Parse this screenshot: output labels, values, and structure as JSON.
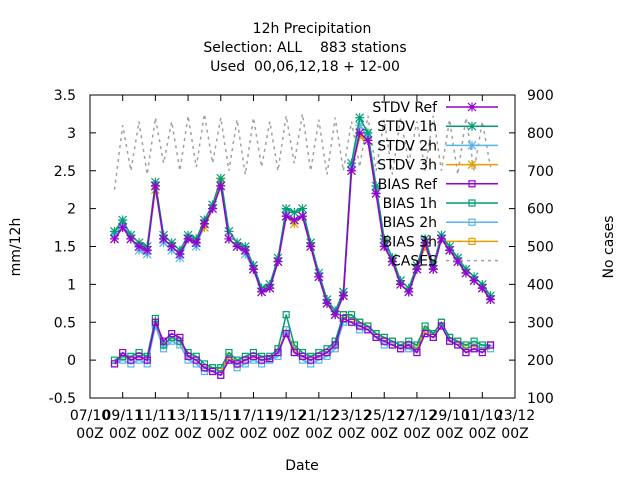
{
  "chart_data": {
    "type": "line",
    "title": "12h Precipitation",
    "subtitle": [
      "Selection: ALL    883 stations",
      "Used  00,06,12,18 + 12-00"
    ],
    "x_label": "Date",
    "y_label": "mm/12h",
    "y2_label": "No cases",
    "legend": "top right",
    "xlim": [
      0,
      26
    ],
    "xticks": [
      {
        "value": 0,
        "label": "07/10\n00Z"
      },
      {
        "value": 2,
        "label": "09/11\n00Z"
      },
      {
        "value": 4,
        "label": "11/11\n00Z"
      },
      {
        "value": 6,
        "label": "13/11\n00Z"
      },
      {
        "value": 8,
        "label": "15/11\n00Z"
      },
      {
        "value": 10,
        "label": "17/11\n00Z"
      },
      {
        "value": 12,
        "label": "19/12\n00Z"
      },
      {
        "value": 14,
        "label": "21/12\n00Z"
      },
      {
        "value": 16,
        "label": "23/12\n00Z"
      },
      {
        "value": 18,
        "label": "25/12\n00Z"
      },
      {
        "value": 20,
        "label": "27/12\n00Z"
      },
      {
        "value": 22,
        "label": "29/10\n00Z"
      },
      {
        "value": 24,
        "label": "11/10\n00Z"
      },
      {
        "value": 26,
        "label": "23/12\n00Z"
      }
    ],
    "ylim": [
      -0.5,
      3.5
    ],
    "yticks": [
      {
        "value": -0.5,
        "label": "-0.5"
      },
      0,
      0.5,
      1,
      1.5,
      2,
      2.5,
      3,
      3.5
    ],
    "y2lim": [
      100,
      900
    ],
    "y2ticks": [
      100,
      200,
      300,
      400,
      500,
      600,
      700,
      800,
      900
    ],
    "x": [
      1.5,
      2,
      2.5,
      3,
      3.5,
      4,
      4.5,
      5,
      5.5,
      6,
      6.5,
      7,
      7.5,
      8,
      8.5,
      9,
      9.5,
      10,
      10.5,
      11,
      11.5,
      12,
      12.5,
      13,
      13.5,
      14,
      14.5,
      15,
      15.5,
      16,
      16.5,
      17,
      17.5,
      18,
      18.5,
      19,
      19.5,
      20,
      20.5,
      21,
      21.5,
      22,
      22.5,
      23,
      23.5,
      24,
      24.5
    ],
    "series": [
      {
        "name": "STDV Ref",
        "color": "#9400d3",
        "marker": "star",
        "values": [
          1.6,
          1.75,
          1.6,
          1.5,
          1.45,
          2.3,
          1.6,
          1.5,
          1.4,
          1.6,
          1.55,
          1.8,
          2.0,
          2.3,
          1.6,
          1.5,
          1.45,
          1.2,
          0.9,
          0.95,
          1.3,
          1.9,
          1.85,
          1.9,
          1.5,
          1.1,
          0.75,
          0.6,
          0.85,
          2.5,
          3.0,
          2.9,
          2.2,
          1.5,
          1.3,
          1.0,
          0.9,
          1.2,
          1.55,
          1.2,
          1.6,
          1.45,
          1.3,
          1.15,
          1.05,
          0.95,
          0.8
        ]
      },
      {
        "name": "STDV 1h",
        "color": "#009e73",
        "marker": "star",
        "values": [
          1.7,
          1.85,
          1.65,
          1.55,
          1.5,
          2.35,
          1.65,
          1.55,
          1.45,
          1.65,
          1.6,
          1.85,
          2.05,
          2.4,
          1.7,
          1.55,
          1.5,
          1.25,
          0.95,
          1.0,
          1.35,
          2.0,
          1.95,
          2.0,
          1.55,
          1.15,
          0.8,
          0.65,
          0.9,
          2.6,
          3.2,
          3.0,
          2.3,
          1.6,
          1.35,
          1.05,
          0.95,
          1.25,
          1.6,
          1.25,
          1.65,
          1.5,
          1.35,
          1.2,
          1.1,
          1.0,
          0.85
        ]
      },
      {
        "name": "STDV 2h",
        "color": "#56b4e9",
        "marker": "star",
        "values": [
          1.65,
          1.8,
          1.6,
          1.45,
          1.4,
          2.3,
          1.55,
          1.45,
          1.35,
          1.6,
          1.5,
          1.8,
          2.0,
          2.3,
          1.6,
          1.5,
          1.4,
          1.2,
          0.9,
          0.95,
          1.3,
          1.95,
          1.85,
          1.9,
          1.5,
          1.1,
          0.75,
          0.6,
          0.85,
          2.55,
          3.1,
          2.95,
          2.25,
          1.55,
          1.3,
          1.0,
          0.9,
          1.2,
          1.55,
          1.2,
          1.6,
          1.45,
          1.3,
          1.15,
          1.05,
          0.95,
          0.8
        ]
      },
      {
        "name": "STDV 3h",
        "color": "#e69f00",
        "marker": "star",
        "values": [
          1.6,
          1.75,
          1.6,
          1.5,
          1.45,
          2.25,
          1.6,
          1.5,
          1.4,
          1.6,
          1.55,
          1.75,
          2.0,
          2.35,
          1.6,
          1.5,
          1.45,
          1.2,
          0.9,
          0.95,
          1.3,
          1.9,
          1.8,
          1.9,
          1.5,
          1.1,
          0.75,
          0.6,
          0.85,
          2.5,
          2.95,
          2.9,
          2.2,
          1.5,
          1.3,
          1.0,
          0.9,
          1.2,
          1.5,
          1.2,
          1.6,
          1.45,
          1.3,
          1.15,
          1.05,
          0.95,
          0.8
        ]
      },
      {
        "name": "BIAS Ref",
        "color": "#9400d3",
        "marker": "square",
        "values": [
          -0.05,
          0.1,
          0.0,
          0.05,
          0.0,
          0.5,
          0.25,
          0.35,
          0.3,
          0.05,
          0.0,
          -0.1,
          -0.15,
          -0.2,
          0.0,
          -0.05,
          0.0,
          0.05,
          0.0,
          0.02,
          0.1,
          0.35,
          0.1,
          0.05,
          0.0,
          0.05,
          0.1,
          0.2,
          0.55,
          0.5,
          0.45,
          0.4,
          0.3,
          0.25,
          0.2,
          0.15,
          0.2,
          0.1,
          0.35,
          0.3,
          0.45,
          0.25,
          0.2,
          0.1,
          0.15,
          0.1,
          0.2
        ]
      },
      {
        "name": "BIAS 1h",
        "color": "#009e73",
        "marker": "square",
        "values": [
          0.0,
          0.05,
          0.05,
          0.1,
          0.05,
          0.55,
          0.2,
          0.3,
          0.25,
          0.1,
          0.05,
          -0.05,
          -0.1,
          -0.1,
          0.1,
          0.0,
          0.05,
          0.1,
          0.05,
          0.05,
          0.15,
          0.6,
          0.2,
          0.1,
          0.05,
          0.1,
          0.15,
          0.25,
          0.6,
          0.6,
          0.5,
          0.45,
          0.35,
          0.3,
          0.25,
          0.2,
          0.25,
          0.2,
          0.45,
          0.35,
          0.5,
          0.3,
          0.25,
          0.2,
          0.25,
          0.2,
          0.2
        ]
      },
      {
        "name": "BIAS 2h",
        "color": "#56b4e9",
        "marker": "square",
        "values": [
          -0.05,
          0.0,
          -0.05,
          0.0,
          -0.05,
          0.45,
          0.15,
          0.25,
          0.2,
          0.0,
          -0.05,
          -0.15,
          -0.15,
          -0.2,
          0.0,
          -0.1,
          -0.05,
          0.0,
          -0.05,
          0.0,
          0.05,
          0.4,
          0.1,
          0.0,
          -0.05,
          0.0,
          0.05,
          0.15,
          0.5,
          0.5,
          0.4,
          0.4,
          0.3,
          0.2,
          0.2,
          0.15,
          0.15,
          0.1,
          0.35,
          0.3,
          0.45,
          0.25,
          0.2,
          0.1,
          0.15,
          0.15,
          0.15
        ]
      },
      {
        "name": "BIAS 3h",
        "color": "#e69f00",
        "marker": "square",
        "values": [
          -0.05,
          0.05,
          0.0,
          0.05,
          0.0,
          0.5,
          0.2,
          0.3,
          0.25,
          0.05,
          0.0,
          -0.1,
          -0.1,
          -0.15,
          0.05,
          -0.05,
          0.0,
          0.05,
          0.0,
          0.02,
          0.1,
          0.4,
          0.15,
          0.05,
          0.0,
          0.05,
          0.1,
          0.2,
          0.6,
          0.55,
          0.5,
          0.45,
          0.35,
          0.3,
          0.25,
          0.2,
          0.2,
          0.15,
          0.4,
          0.35,
          0.5,
          0.3,
          0.25,
          0.15,
          0.2,
          0.15,
          0.2
        ]
      },
      {
        "name": "CASES",
        "color": "#a0a0a0",
        "marker": "none",
        "dash": true,
        "axis": "y2",
        "values": [
          650,
          820,
          700,
          830,
          690,
          840,
          720,
          830,
          700,
          845,
          710,
          850,
          720,
          840,
          700,
          835,
          690,
          840,
          710,
          830,
          700,
          845,
          720,
          850,
          700,
          835,
          690,
          840,
          700,
          830,
          710,
          845,
          700,
          835,
          690,
          840,
          720,
          830,
          700,
          845,
          700,
          835,
          690,
          840,
          700,
          830,
          710
        ]
      }
    ]
  }
}
